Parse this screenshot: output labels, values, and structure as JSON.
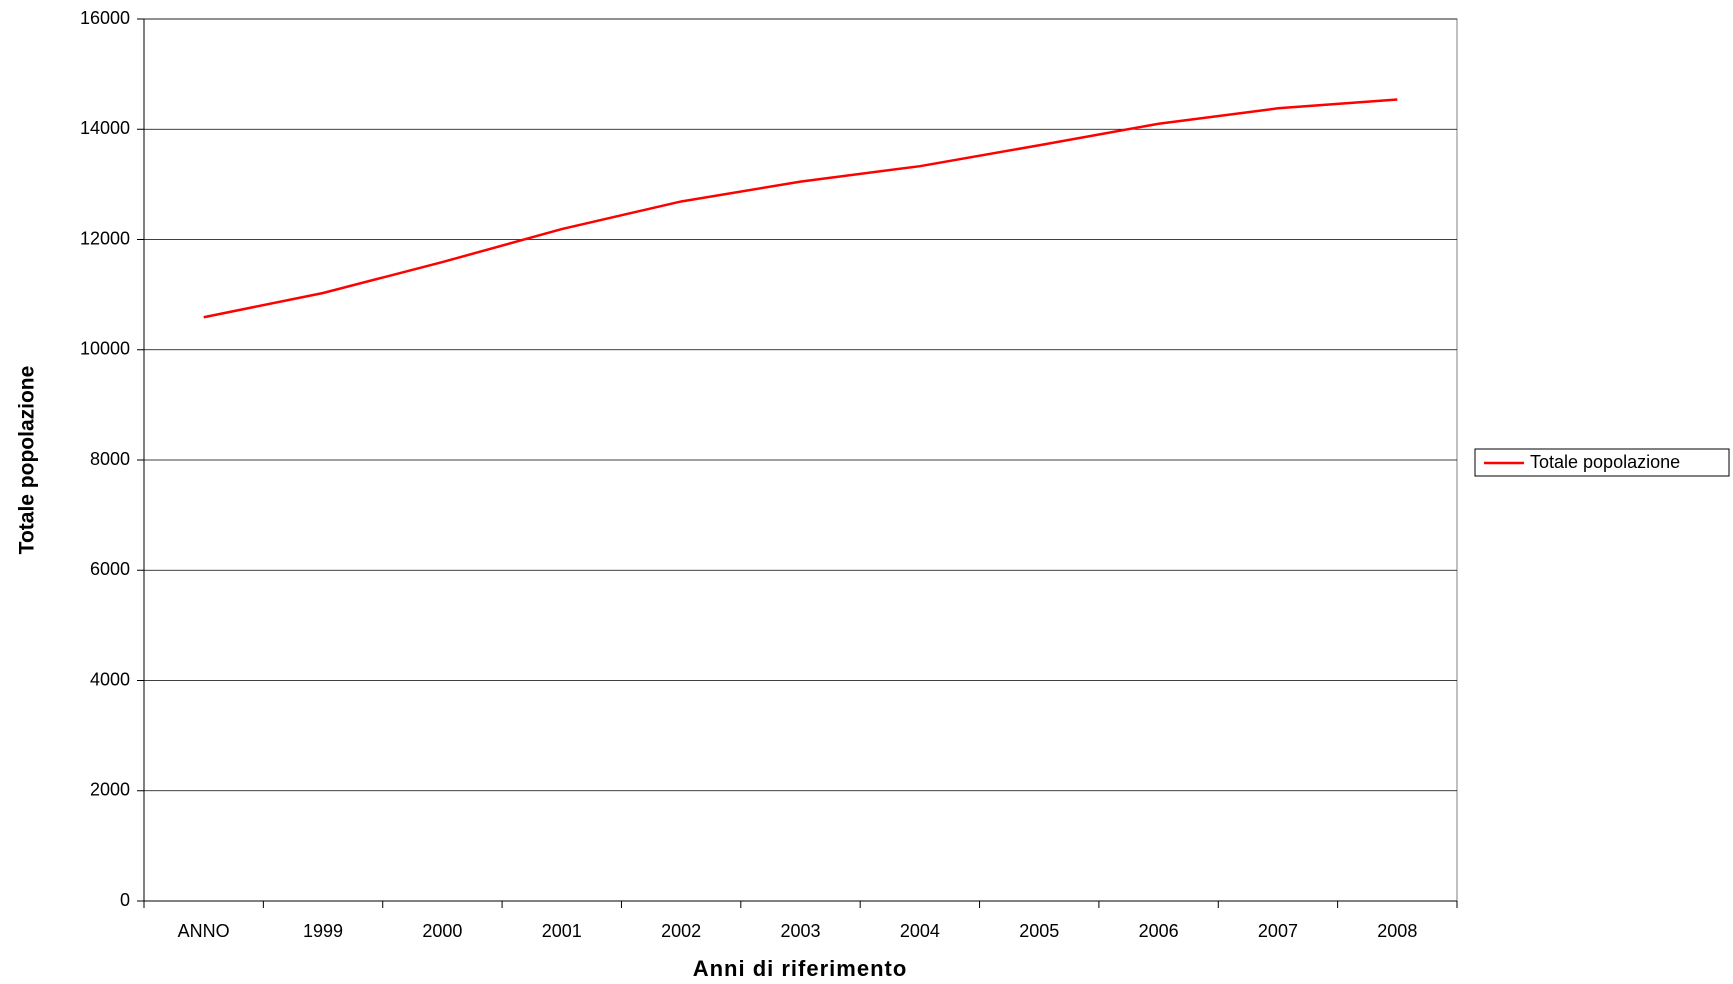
{
  "chart_data": {
    "type": "line",
    "x_label": "Anni di riferimento",
    "y_label": "Totale popolazione",
    "categories": [
      "ANNO",
      "1999",
      "2000",
      "2001",
      "2002",
      "2003",
      "2004",
      "2005",
      "2006",
      "2007",
      "2008"
    ],
    "series": [
      {
        "name": "Totale popolazione",
        "color": "#ff0000",
        "values": [
          10590,
          11030,
          11590,
          12190,
          12690,
          13050,
          13330,
          13710,
          14100,
          14380,
          14540
        ]
      }
    ],
    "ylim": [
      0,
      16000
    ],
    "yticks": [
      0,
      2000,
      4000,
      6000,
      8000,
      10000,
      12000,
      14000,
      16000
    ],
    "grid": true,
    "legend": "right"
  }
}
